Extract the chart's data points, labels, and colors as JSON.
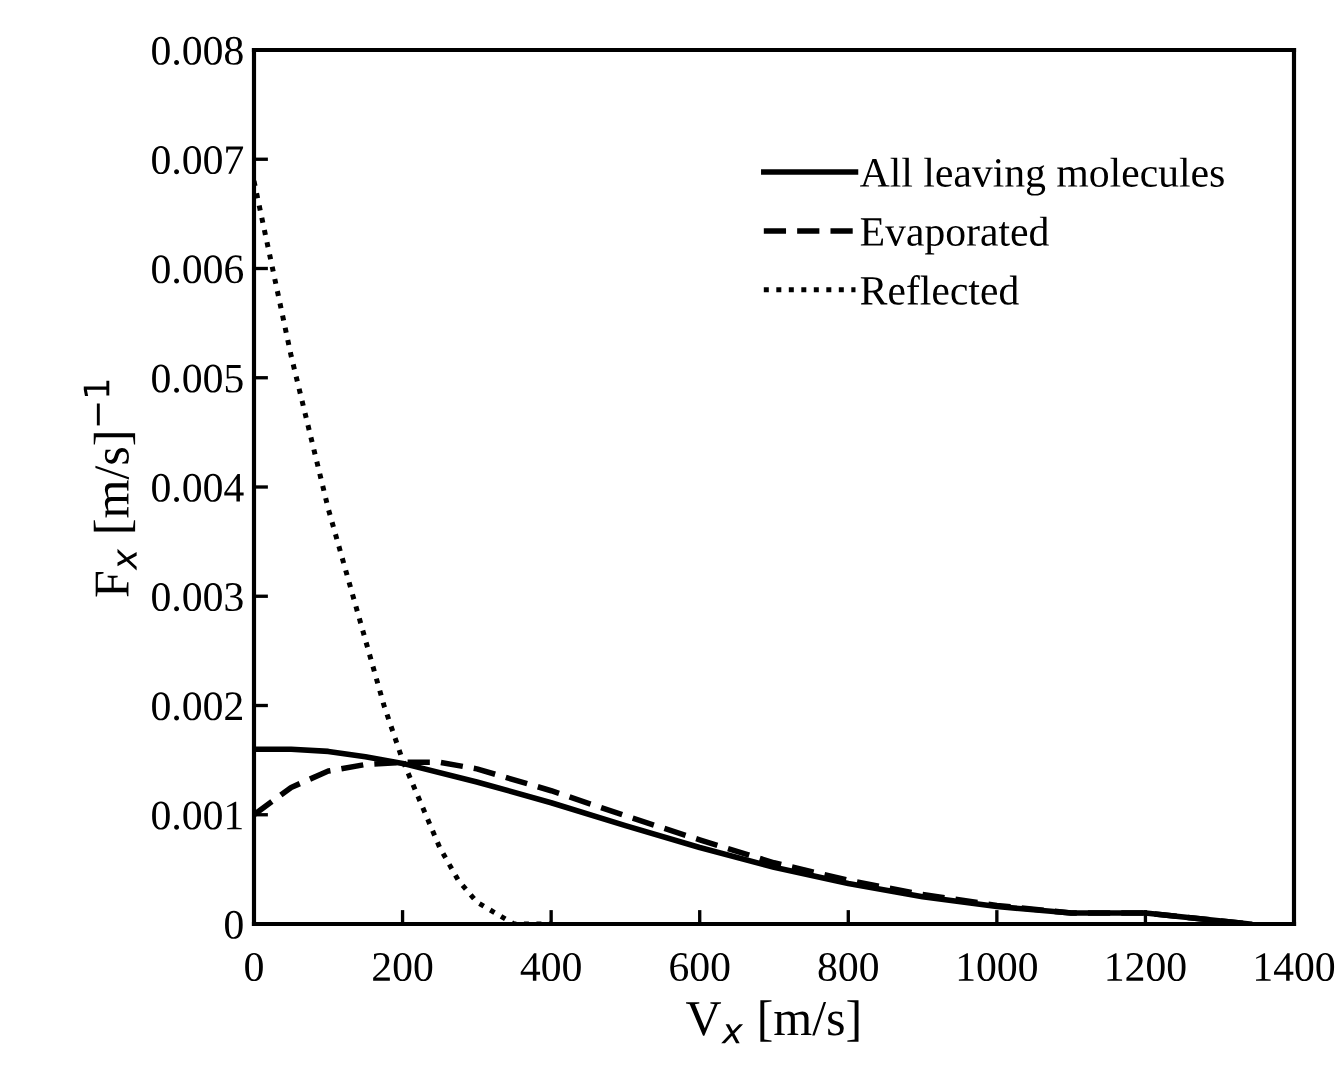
{
  "chart_data": {
    "type": "line",
    "xlabel": "V$_{x}$ [m/s]",
    "ylabel": "F$_{x}$ [m/s]$^{−1}$",
    "xlim": [
      0,
      1400
    ],
    "ylim": [
      0,
      0.008
    ],
    "xticks": [
      0,
      200,
      400,
      600,
      800,
      1000,
      1200,
      1400
    ],
    "yticks": [
      0,
      0.001,
      0.002,
      0.003,
      0.004,
      0.005,
      0.006,
      0.007,
      0.008
    ],
    "grid": false,
    "legend": "top right",
    "series": [
      {
        "name": "All leaving molecules",
        "color": "#000000",
        "line_style": "solid",
        "x": [
          0,
          50,
          100,
          150,
          200,
          300,
          400,
          500,
          600,
          700,
          800,
          900,
          1000,
          1100,
          1200,
          1340
        ],
        "values": [
          0.0016,
          0.0016,
          0.00158,
          0.00153,
          0.00147,
          0.0013,
          0.00111,
          0.0009,
          0.0007,
          0.00052,
          0.00037,
          0.00025,
          0.00016,
          0.0001,
          0.0001,
          0
        ]
      },
      {
        "name": "Evaporated",
        "color": "#000000",
        "line_style": "dashed",
        "x": [
          0,
          50,
          100,
          150,
          200,
          250,
          300,
          400,
          500,
          600,
          700,
          800,
          900,
          1000,
          1100,
          1200,
          1340
        ],
        "values": [
          0.001,
          0.00125,
          0.0014,
          0.00146,
          0.00148,
          0.00148,
          0.00142,
          0.00122,
          0.00099,
          0.00077,
          0.00056,
          0.0004,
          0.00027,
          0.00017,
          0.0001,
          0.0001,
          0
        ]
      },
      {
        "name": "Reflected",
        "color": "#000000",
        "line_style": "dotted",
        "x": [
          0,
          25,
          50,
          75,
          100,
          125,
          150,
          175,
          200,
          225,
          250,
          275,
          300,
          325,
          350,
          375,
          400
        ],
        "values": [
          0.0068,
          0.006,
          0.0052,
          0.0045,
          0.0038,
          0.0032,
          0.0026,
          0.002,
          0.0015,
          0.0011,
          0.0007,
          0.0004,
          0.0002,
          0.0001,
          0,
          0,
          0
        ]
      }
    ]
  }
}
